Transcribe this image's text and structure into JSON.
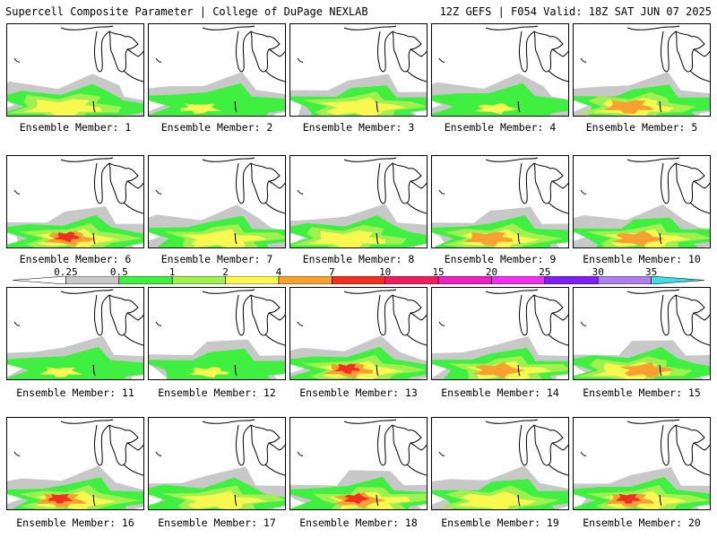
{
  "header": {
    "title": "Supercell Composite Parameter | College of DuPage NEXLAB",
    "valid": "12Z GEFS | F054 Valid: 18Z SAT JUN 07 2025"
  },
  "colorbar": {
    "ticks": [
      "0.25",
      "0.5",
      "1",
      "2",
      "4",
      "7",
      "10",
      "15",
      "20",
      "25",
      "30",
      "35"
    ],
    "colors": [
      "#c8c8c8",
      "#40f040",
      "#a0f050",
      "#f8f850",
      "#f8a030",
      "#f03020",
      "#f01c60",
      "#f020c0",
      "#f030f0",
      "#8020f0",
      "#b080f0",
      "#40e0e0"
    ]
  },
  "panel_label_prefix": "Ensemble Member:",
  "members": [
    {
      "label": "Ensemble Member: 1",
      "intensity": 2
    },
    {
      "label": "Ensemble Member: 2",
      "intensity": 1
    },
    {
      "label": "Ensemble Member: 3",
      "intensity": 2
    },
    {
      "label": "Ensemble Member: 4",
      "intensity": 1
    },
    {
      "label": "Ensemble Member: 5",
      "intensity": 3
    },
    {
      "label": "Ensemble Member: 6",
      "intensity": 4
    },
    {
      "label": "Ensemble Member: 7",
      "intensity": 2
    },
    {
      "label": "Ensemble Member: 8",
      "intensity": 2
    },
    {
      "label": "Ensemble Member: 9",
      "intensity": 3
    },
    {
      "label": "Ensemble Member: 10",
      "intensity": 3
    },
    {
      "label": "Ensemble Member: 11",
      "intensity": 1
    },
    {
      "label": "Ensemble Member: 12",
      "intensity": 1
    },
    {
      "label": "Ensemble Member: 13",
      "intensity": 4
    },
    {
      "label": "Ensemble Member: 14",
      "intensity": 3
    },
    {
      "label": "Ensemble Member: 15",
      "intensity": 3
    },
    {
      "label": "Ensemble Member: 16",
      "intensity": 4
    },
    {
      "label": "Ensemble Member: 17",
      "intensity": 2
    },
    {
      "label": "Ensemble Member: 18",
      "intensity": 4
    },
    {
      "label": "Ensemble Member: 19",
      "intensity": 2
    },
    {
      "label": "Ensemble Member: 20",
      "intensity": 4
    }
  ]
}
